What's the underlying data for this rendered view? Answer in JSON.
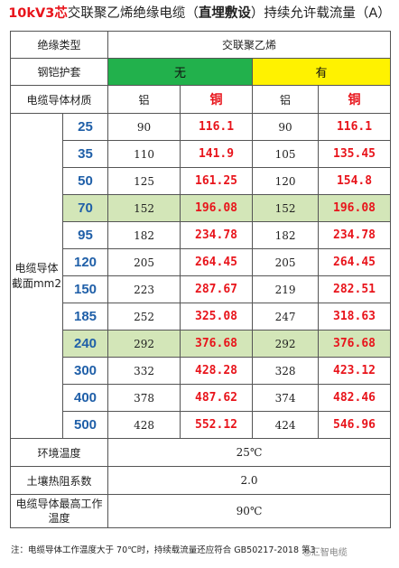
{
  "title": {
    "part1": "10kV3",
    "part2": "芯",
    "part3": "交联聚乙烯绝缘电缆（",
    "part4": "直埋敷设",
    "part5": "）持续允许载流量（A）"
  },
  "header": {
    "insulation_label": "绝缘类型",
    "insulation_value": "交联聚乙烯",
    "armor_label": "钢铠护套",
    "armor_none": "无",
    "armor_yes": "有",
    "material_label": "电缆导体材质",
    "al": "铝",
    "cu": "铜"
  },
  "section_label": "电缆导体截面mm2",
  "rows": [
    {
      "size": "25",
      "al_none": "90",
      "cu_none": "116.1",
      "al_yes": "90",
      "cu_yes": "116.1",
      "highlight": false
    },
    {
      "size": "35",
      "al_none": "110",
      "cu_none": "141.9",
      "al_yes": "105",
      "cu_yes": "135.45",
      "highlight": false
    },
    {
      "size": "50",
      "al_none": "125",
      "cu_none": "161.25",
      "al_yes": "120",
      "cu_yes": "154.8",
      "highlight": false
    },
    {
      "size": "70",
      "al_none": "152",
      "cu_none": "196.08",
      "al_yes": "152",
      "cu_yes": "196.08",
      "highlight": true
    },
    {
      "size": "95",
      "al_none": "182",
      "cu_none": "234.78",
      "al_yes": "182",
      "cu_yes": "234.78",
      "highlight": false
    },
    {
      "size": "120",
      "al_none": "205",
      "cu_none": "264.45",
      "al_yes": "205",
      "cu_yes": "264.45",
      "highlight": false
    },
    {
      "size": "150",
      "al_none": "223",
      "cu_none": "287.67",
      "al_yes": "219",
      "cu_yes": "282.51",
      "highlight": false
    },
    {
      "size": "185",
      "al_none": "252",
      "cu_none": "325.08",
      "al_yes": "247",
      "cu_yes": "318.63",
      "highlight": false
    },
    {
      "size": "240",
      "al_none": "292",
      "cu_none": "376.68",
      "al_yes": "292",
      "cu_yes": "376.68",
      "highlight": true
    },
    {
      "size": "300",
      "al_none": "332",
      "cu_none": "428.28",
      "al_yes": "328",
      "cu_yes": "423.12",
      "highlight": false
    },
    {
      "size": "400",
      "al_none": "378",
      "cu_none": "487.62",
      "al_yes": "374",
      "cu_yes": "482.46",
      "highlight": false
    },
    {
      "size": "500",
      "al_none": "428",
      "cu_none": "552.12",
      "al_yes": "424",
      "cu_yes": "546.96",
      "highlight": false
    }
  ],
  "footer": {
    "ambient_label": "环境温度",
    "ambient_value": "25℃",
    "soil_label": "土壤热阻系数",
    "soil_value": "2.0",
    "maxtemp_label": "电缆导体最高工作温度",
    "maxtemp_value": "90℃"
  },
  "note": "注：电缆导体工作温度大于 70℃时，持续载流量还应符合 GB50217-2018 第3.",
  "watermark": "汇智电缆"
}
